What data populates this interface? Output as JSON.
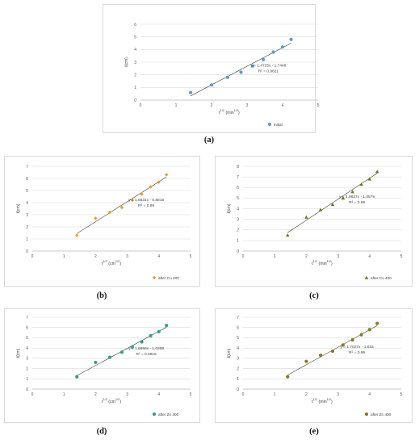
{
  "captions": [
    "(a)",
    "(b)",
    "(c)",
    "(d)",
    "(e)"
  ],
  "chart_data": [
    {
      "type": "scatter",
      "panel_label": "(a)",
      "xlabel": "t^{1/2} (min^{1/2})",
      "ylabel": "ℓ(cm)",
      "xlim": [
        0,
        5
      ],
      "ylim": [
        0,
        6
      ],
      "xticks": [
        0,
        1,
        2,
        3,
        4,
        5
      ],
      "yticks": [
        0,
        1,
        2,
        3,
        4,
        5,
        6
      ],
      "grid": true,
      "legend_position": "bottom-right",
      "marker": "circle",
      "color": "#5b9bd5",
      "series": [
        {
          "name": "initial",
          "x": [
            1.41,
            2.0,
            2.45,
            2.83,
            3.16,
            3.46,
            3.74,
            4.0,
            4.24
          ],
          "y": [
            0.6,
            1.2,
            1.8,
            2.2,
            2.7,
            3.2,
            3.8,
            4.2,
            4.8
          ]
        }
      ],
      "trendline": {
        "slope": 1.4725,
        "intercept": -1.7448,
        "x_range": [
          1.41,
          4.24
        ]
      },
      "annotation": [
        "y = 1.4725x - 1.7448",
        "R² = 0.9821"
      ]
    },
    {
      "type": "scatter",
      "panel_label": "(b)",
      "xlabel": "t^{1/2} (cm^{1/2})",
      "ylabel": "ℓ(cm)",
      "xlim": [
        0,
        5
      ],
      "ylim": [
        0,
        7
      ],
      "xticks": [
        0,
        1,
        2,
        3,
        4,
        5
      ],
      "yticks": [
        0,
        1,
        2,
        3,
        4,
        5,
        6,
        7
      ],
      "grid": true,
      "legend_position": "bottom-right",
      "marker": "diamond",
      "color": "#ed9c28",
      "series": [
        {
          "name": "after Cu 200",
          "x": [
            1.41,
            2.0,
            2.45,
            2.83,
            3.16,
            3.46,
            3.74,
            4.0,
            4.24
          ],
          "y": [
            1.3,
            2.7,
            3.2,
            3.6,
            4.2,
            4.7,
            5.3,
            5.7,
            6.3
          ]
        }
      ],
      "trendline": {
        "slope": 1.6531,
        "intercept": -0.8816,
        "x_range": [
          1.41,
          4.24
        ]
      },
      "annotation": [
        "y = 1.6531x - 0.8816",
        "R² = 0.99"
      ]
    },
    {
      "type": "scatter",
      "panel_label": "(c)",
      "xlabel": "t^{1/2} (min^{1/2})",
      "ylabel": "ℓ(cm)",
      "xlim": [
        0,
        5
      ],
      "ylim": [
        0,
        8
      ],
      "xticks": [
        0,
        1,
        2,
        3,
        4,
        5
      ],
      "yticks": [
        0,
        1,
        2,
        3,
        4,
        5,
        6,
        7,
        8
      ],
      "grid": true,
      "legend_position": "bottom-right",
      "marker": "triangle",
      "color": "#6b7a1e",
      "series": [
        {
          "name": "after Cu 400",
          "x": [
            1.41,
            2.0,
            2.45,
            2.83,
            3.16,
            3.46,
            3.74,
            4.0,
            4.24
          ],
          "y": [
            1.5,
            3.2,
            3.9,
            4.4,
            5.0,
            5.6,
            6.3,
            6.8,
            7.5
          ]
        }
      ],
      "trendline": {
        "slope": 1.9837,
        "intercept": -1.0579,
        "x_range": [
          1.41,
          4.24
        ]
      },
      "annotation": [
        "y = 1.9837x - 1.0579",
        "R² = 0.99"
      ]
    },
    {
      "type": "scatter",
      "panel_label": "(d)",
      "xlabel": "t^{1/2} (cm^{1/2})",
      "ylabel": "ℓ(cm)",
      "xlim": [
        0,
        5
      ],
      "ylim": [
        0,
        7
      ],
      "xticks": [
        0,
        1,
        2,
        3,
        4,
        5
      ],
      "yticks": [
        0,
        1,
        2,
        3,
        4,
        5,
        6,
        7
      ],
      "grid": true,
      "legend_position": "bottom-right",
      "marker": "circle",
      "color": "#2e9e8e",
      "series": [
        {
          "name": "after Zn 200",
          "x": [
            1.41,
            2.0,
            2.45,
            2.83,
            3.16,
            3.46,
            3.74,
            4.0,
            4.24
          ],
          "y": [
            1.2,
            2.6,
            3.1,
            3.6,
            4.1,
            4.6,
            5.2,
            5.6,
            6.2
          ]
        }
      ],
      "trendline": {
        "slope": 1.6658,
        "intercept": -1.0308,
        "x_range": [
          1.41,
          4.24
        ]
      },
      "annotation": [
        "y = 1.6658x - 1.0308",
        "R² = 0.9915"
      ]
    },
    {
      "type": "scatter",
      "panel_label": "(e)",
      "xlabel": "t^{1/2} (min^{1/2})",
      "ylabel": "ℓ(cm)",
      "xlim": [
        0,
        5
      ],
      "ylim": [
        0,
        7
      ],
      "xticks": [
        0,
        1,
        2,
        3,
        4,
        5
      ],
      "yticks": [
        0,
        1,
        2,
        3,
        4,
        5,
        6,
        7
      ],
      "grid": true,
      "legend_position": "bottom-right",
      "marker": "circle",
      "color": "#8c7a1e",
      "series": [
        {
          "name": "after Zn 400",
          "x": [
            1.41,
            2.0,
            2.45,
            2.83,
            3.16,
            3.46,
            3.74,
            4.0,
            4.24
          ],
          "y": [
            1.2,
            2.7,
            3.3,
            3.7,
            4.3,
            4.8,
            5.3,
            5.8,
            6.4
          ]
        }
      ],
      "trendline": {
        "slope": 1.7027,
        "intercept": -1.033,
        "x_range": [
          1.41,
          4.24
        ]
      },
      "annotation": [
        "y = 1.7027x - 1.033",
        "R² = 0.99"
      ]
    }
  ]
}
